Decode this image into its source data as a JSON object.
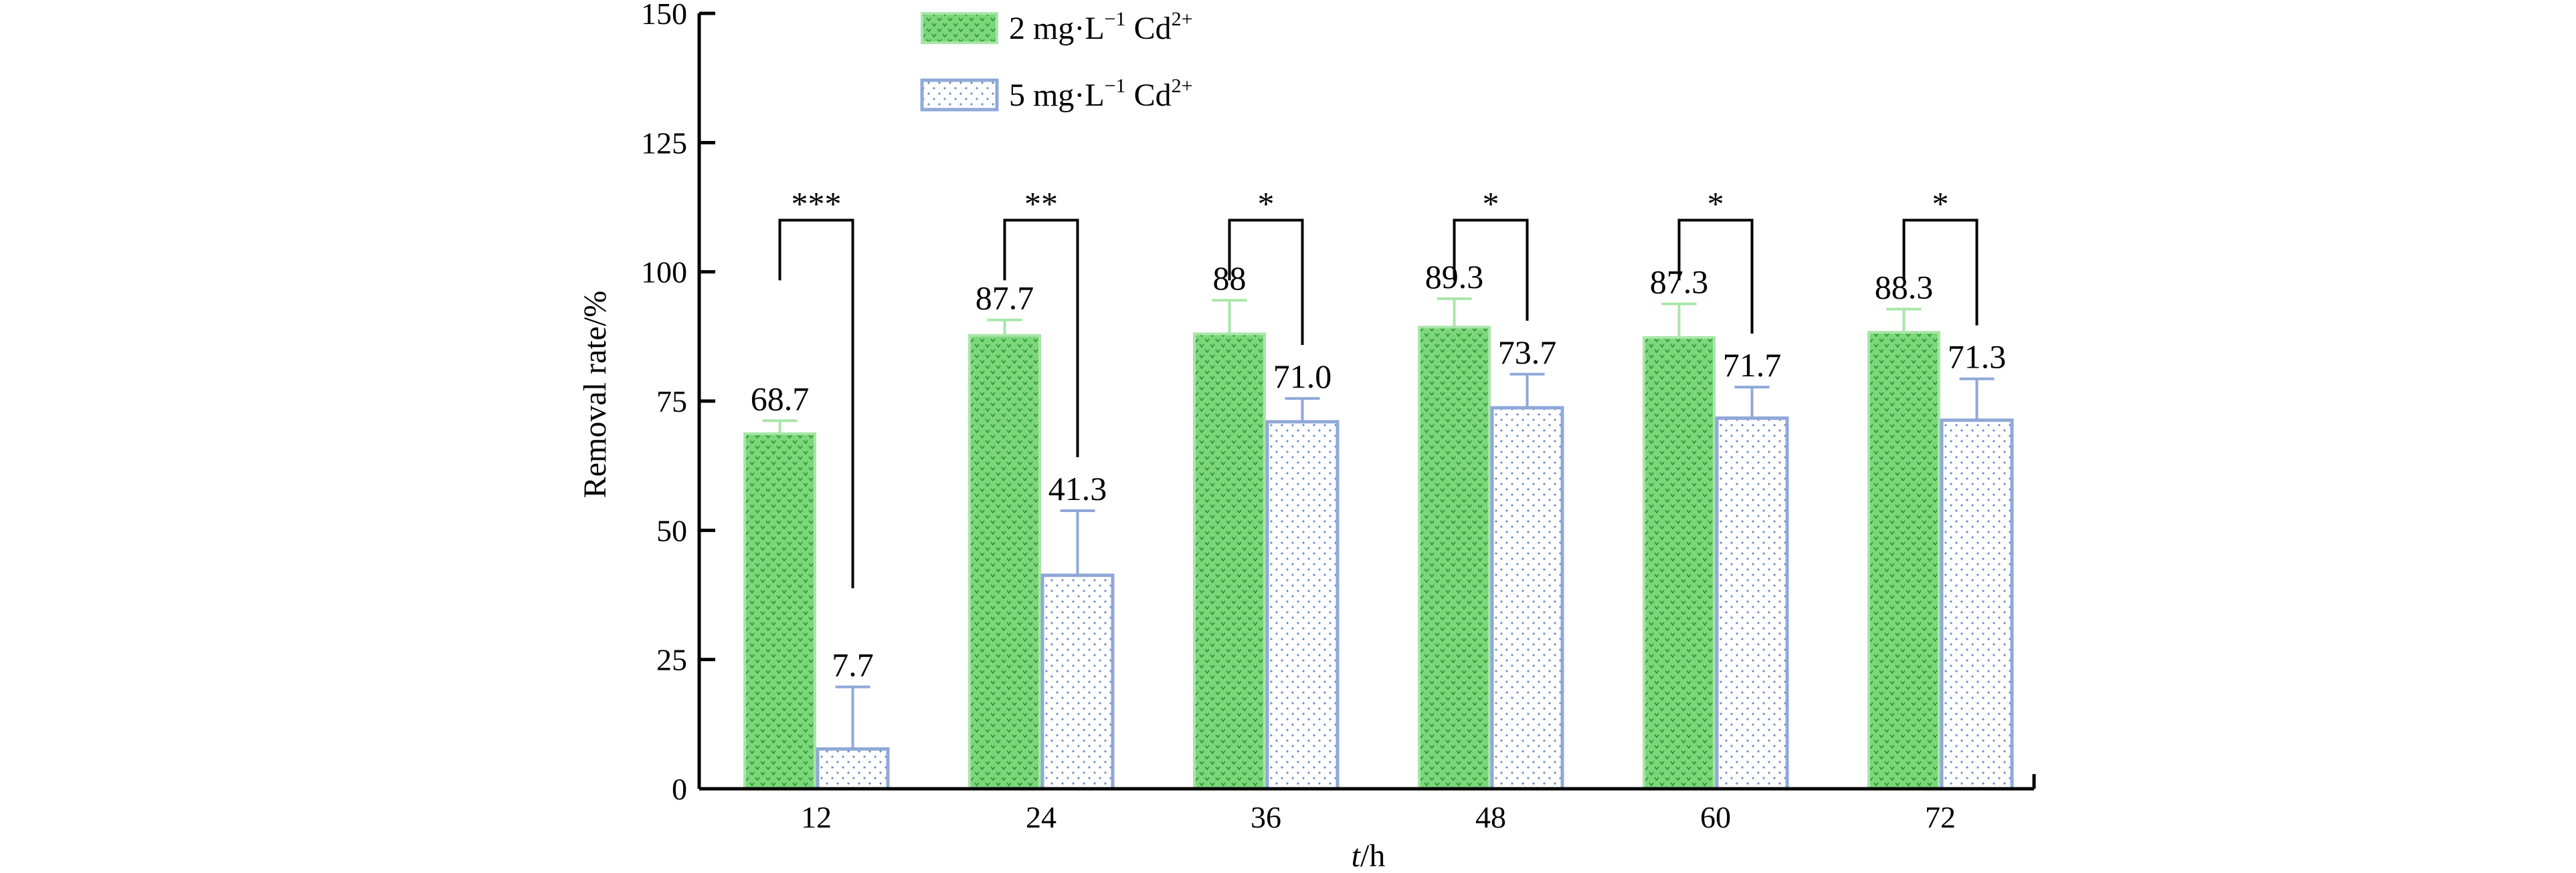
{
  "chart_data": {
    "type": "bar",
    "xlabel_italic": "t",
    "xlabel_rest": "/h",
    "ylabel": "Removal rate/%",
    "categories": [
      "12",
      "24",
      "36",
      "48",
      "60",
      "72"
    ],
    "ylim": [
      0,
      150
    ],
    "yticks": [
      0,
      25,
      50,
      75,
      100,
      125,
      150
    ],
    "grid": false,
    "legend_position": "top-left",
    "series": [
      {
        "name_main": "2 mg·L",
        "name_sup1": "−1",
        "name_mid": " Cd",
        "name_sup2": "2+",
        "color": "#7CD67C",
        "edge_color": "#A8E6A8",
        "values": [
          68.7,
          87.7,
          88.0,
          89.3,
          87.3,
          88.3
        ],
        "value_labels": [
          "68.7",
          "87.7",
          "88",
          "89.3",
          "87.3",
          "88.3"
        ],
        "errors": [
          2.5,
          3.0,
          6.5,
          5.5,
          6.5,
          4.5
        ]
      },
      {
        "name_main": "5 mg·L",
        "name_sup1": "−1",
        "name_mid": " Cd",
        "name_sup2": "2+",
        "color": "#8FA8D8",
        "edge_color": "#8FA8D8",
        "values": [
          7.7,
          41.3,
          71.0,
          73.7,
          71.7,
          71.3
        ],
        "value_labels": [
          "7.7",
          "41.3",
          "71.0",
          "73.7",
          "71.7",
          "71.3"
        ],
        "errors": [
          12.0,
          12.5,
          4.5,
          6.5,
          6.0,
          8.0
        ]
      }
    ],
    "significance": [
      "***",
      "**",
      "*",
      "*",
      "*",
      "*"
    ]
  }
}
